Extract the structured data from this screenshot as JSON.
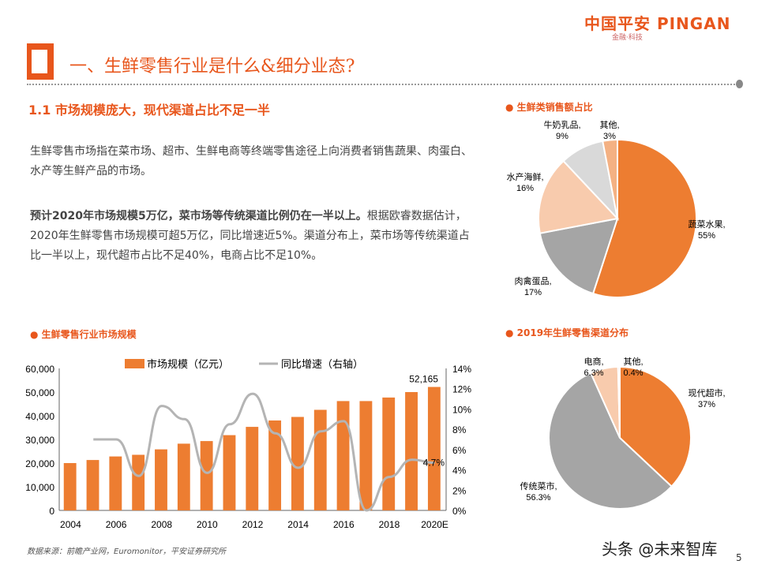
{
  "header": {
    "logo": "中国平安 PINGAN",
    "logo_sub": "金融·科技",
    "title": "一、生鲜零售行业是什么&细分业态?"
  },
  "section": {
    "subtitle": "1.1  市场规模庞大，现代渠道占比不足一半",
    "para1": "生鲜零售市场指在菜市场、超市、生鲜电商等终端零售途径上向消费者销售蔬果、肉蛋白、水产等生鲜产品的市场。",
    "para2_bold": "预计2020年市场规模5万亿，菜市场等传统渠道比例仍在一半以上。",
    "para2": "根据欧睿数据估计，2020年生鲜零售市场规模可超5万亿，同比增速近5%。渠道分布上，菜市场等传统渠道占比一半以上，现代超市占比不足40%，电商占比不足10%。"
  },
  "colors": {
    "accent": "#e8561c",
    "bar": "#ed7d31",
    "line": "#b4b4b4",
    "pie": [
      "#ed7d31",
      "#a5a5a5",
      "#f8cbad",
      "#d9d9d9",
      "#f4b183"
    ]
  },
  "chart_data": [
    {
      "type": "bar+line",
      "title": "生鲜零售行业市场规模",
      "categories": [
        "2004",
        "2005",
        "2006",
        "2007",
        "2008",
        "2009",
        "2010",
        "2011",
        "2012",
        "2013",
        "2014",
        "2015",
        "2016",
        "2017",
        "2018",
        "2019",
        "2020E"
      ],
      "xtick_labels": [
        "2004",
        "2006",
        "2008",
        "2010",
        "2012",
        "2014",
        "2016",
        "2018",
        "2020E"
      ],
      "series": [
        {
          "name": "市场规模（亿元）",
          "type": "bar",
          "axis": "left",
          "values": [
            20000,
            21300,
            22800,
            23500,
            25800,
            28200,
            29300,
            31800,
            35300,
            38000,
            39500,
            42500,
            46200,
            46200,
            47700,
            50000,
            52165
          ]
        },
        {
          "name": "同比增速（右轴）",
          "type": "line",
          "axis": "right",
          "values": [
            null,
            7.0,
            7.0,
            3.4,
            10.3,
            9.0,
            3.7,
            8.5,
            11.5,
            7.6,
            4.2,
            7.8,
            8.8,
            0.0,
            3.3,
            5.0,
            4.7
          ]
        }
      ],
      "ylim": [
        0,
        60000
      ],
      "yticks": [
        "0",
        "10,000",
        "20,000",
        "30,000",
        "40,000",
        "50,000",
        "60,000"
      ],
      "y2lim": [
        0,
        14
      ],
      "y2ticks": [
        "0%",
        "2%",
        "4%",
        "6%",
        "8%",
        "10%",
        "12%",
        "14%"
      ],
      "annotations": [
        "52,165",
        "4.7%"
      ],
      "legend": "top"
    },
    {
      "type": "pie",
      "title": "生鲜类销售额占比",
      "slices": [
        {
          "label": "蔬菜水果,",
          "pct": "55%",
          "value": 55
        },
        {
          "label": "肉禽蛋品,",
          "pct": "17%",
          "value": 17
        },
        {
          "label": "水产海鲜,",
          "pct": "16%",
          "value": 16
        },
        {
          "label": "牛奶乳品,",
          "pct": "9%",
          "value": 9
        },
        {
          "label": "其他,",
          "pct": "3%",
          "value": 3
        }
      ]
    },
    {
      "type": "pie",
      "title": "2019年生鲜零售渠道分布",
      "slices": [
        {
          "label": "现代超市,",
          "pct": "37%",
          "value": 37
        },
        {
          "label": "传统菜市,",
          "pct": "56.3%",
          "value": 56.3
        },
        {
          "label": "电商,",
          "pct": "6.3%",
          "value": 6.3
        },
        {
          "label": "其他,",
          "pct": "0.4%",
          "value": 0.4
        }
      ]
    }
  ],
  "footer": {
    "source": "数据来源：前瞻产业网，Euromonitor，平安证券研究所",
    "watermark": "头条 @未来智库",
    "page": "5"
  }
}
